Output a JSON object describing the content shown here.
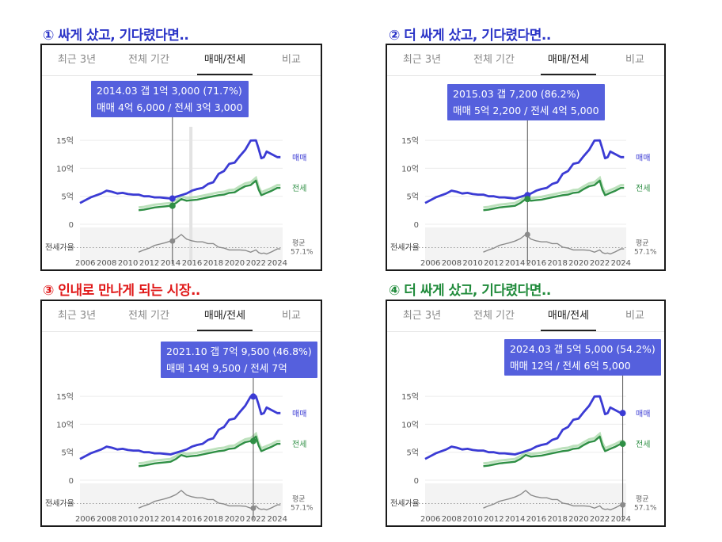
{
  "colors": {
    "sale": "#3b3bd4",
    "rent": "#2f8f45",
    "rent_light": "#9fd49f",
    "ratio": "#8a8a8a",
    "tooltip": "#5560dd"
  },
  "tabs": [
    "최근 3년",
    "전체 기간",
    "매매/전세",
    "비교"
  ],
  "active_tab": 2,
  "labels": {
    "sale": "매매",
    "rent": "전세",
    "ratio": "전세가율",
    "avg": "평균",
    "avg_value": "57.1%"
  },
  "y_ticks": [
    "15억",
    "10억",
    "5억",
    "0"
  ],
  "x_ticks": [
    "2006",
    "2008",
    "2010",
    "2012",
    "2014",
    "2016",
    "2018",
    "2020",
    "2022",
    "2024"
  ],
  "panels": [
    {
      "heading": "① 싸게 샀고, 기다렸다면..",
      "tooltip_line1": "2014.03  갭 1억 3,000 (71.7%)",
      "tooltip_line2": "매매 4억 6,000 / 전세 3억 3,000"
    },
    {
      "heading": "② 더 싸게 샀고, 기다렸다면..",
      "tooltip_line1": "2015.03  갭 7,200 (86.2%)",
      "tooltip_line2": "매매 5억 2,200 / 전세 4억 5,000"
    },
    {
      "heading": "③ 인내로 만나게 되는 시장..",
      "tooltip_line1": "2021.10  갭 7억 9,500 (46.8%)",
      "tooltip_line2": "매매 14억 9,500 / 전세 7억"
    },
    {
      "heading": "④ 더 싸게 샀고, 기다렸다면..",
      "tooltip_line1": "2024.03  갭 5억 5,000 (54.2%)",
      "tooltip_line2": "매매 12억 / 전세 6억 5,000"
    }
  ],
  "chart_data": {
    "type": "line",
    "x": [
      2005.5,
      2006.5,
      2007.5,
      2008.0,
      2008.5,
      2009.0,
      2009.5,
      2010.0,
      2010.5,
      2011.0,
      2011.5,
      2012.0,
      2012.5,
      2013.0,
      2013.5,
      2014.0,
      2014.5,
      2015.0,
      2015.5,
      2016.0,
      2016.5,
      2017.0,
      2017.5,
      2018.0,
      2018.5,
      2019.0,
      2019.5,
      2020.0,
      2020.5,
      2021.0,
      2021.5,
      2022.0,
      2022.25,
      2022.5,
      2022.75,
      2023.0,
      2023.5,
      2024.0,
      2024.3
    ],
    "x_range": [
      2005.5,
      2024.5
    ],
    "ylim": [
      0,
      16
    ],
    "y_unit": "억",
    "series": [
      {
        "name": "매매",
        "values": [
          3.8,
          4.8,
          5.5,
          6.0,
          5.8,
          5.5,
          5.6,
          5.4,
          5.3,
          5.3,
          5.0,
          5.0,
          4.8,
          4.8,
          4.7,
          4.6,
          4.9,
          5.2,
          5.5,
          6.0,
          6.3,
          6.5,
          7.2,
          7.5,
          9.0,
          9.5,
          10.8,
          11.0,
          12.2,
          13.3,
          14.95,
          15.0,
          13.5,
          11.8,
          12.0,
          13.0,
          12.5,
          12.0,
          12.0
        ]
      },
      {
        "name": "전세",
        "values": [
          null,
          null,
          null,
          null,
          null,
          null,
          null,
          null,
          null,
          2.5,
          2.6,
          2.8,
          3.0,
          3.1,
          3.2,
          3.3,
          3.8,
          4.5,
          4.2,
          4.3,
          4.4,
          4.6,
          4.8,
          5.0,
          5.2,
          5.3,
          5.6,
          5.7,
          6.3,
          6.8,
          7.0,
          7.8,
          6.2,
          5.2,
          5.4,
          5.6,
          6.0,
          6.5,
          6.5
        ]
      },
      {
        "name": "전세가율",
        "values": [
          null,
          null,
          null,
          null,
          null,
          null,
          null,
          null,
          null,
          47,
          52,
          56,
          62,
          65,
          68,
          71.7,
          77,
          86.2,
          76,
          72,
          70,
          70,
          66,
          66,
          58,
          56,
          52,
          52,
          52,
          51,
          46.8,
          52,
          46,
          44,
          45,
          43,
          48,
          54.2,
          54.2
        ]
      }
    ],
    "ratio_average": 57.1
  }
}
